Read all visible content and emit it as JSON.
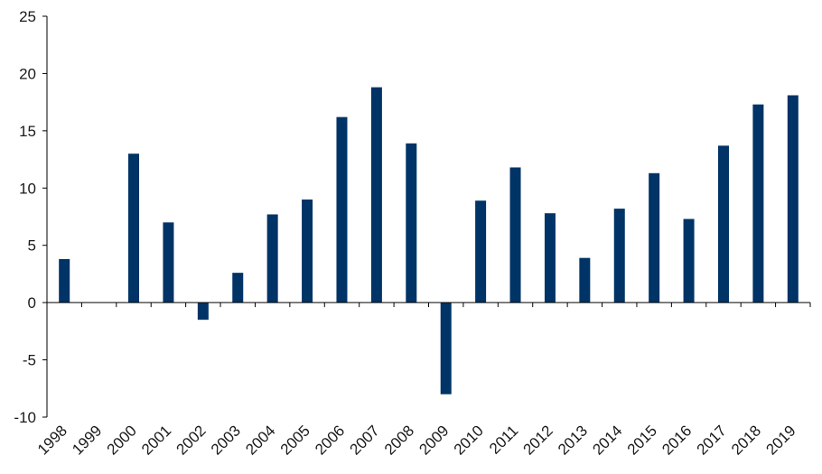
{
  "chart_data": {
    "type": "bar",
    "title": "",
    "xlabel": "",
    "ylabel": "",
    "categories": [
      "1998",
      "1999",
      "2000",
      "2001",
      "2002",
      "2003",
      "2004",
      "2005",
      "2006",
      "2007",
      "2008",
      "2009",
      "2010",
      "2011",
      "2012",
      "2013",
      "2014",
      "2015",
      "2016",
      "2017",
      "2018",
      "2019"
    ],
    "values": [
      3.8,
      0,
      13.0,
      7.0,
      -1.5,
      2.6,
      7.7,
      9.0,
      16.2,
      18.8,
      13.9,
      -8.0,
      8.9,
      11.8,
      7.8,
      3.9,
      8.2,
      11.3,
      7.3,
      13.7,
      17.3,
      18.1
    ],
    "ylim": [
      -10,
      25
    ],
    "yticks": [
      -10,
      -5,
      0,
      5,
      10,
      15,
      20,
      25
    ],
    "ytick_labels": [
      "-10",
      "-5",
      "0",
      "5",
      "10",
      "15",
      "20",
      "25"
    ],
    "grid": false,
    "legend": "none",
    "bar_color": "#003366"
  }
}
